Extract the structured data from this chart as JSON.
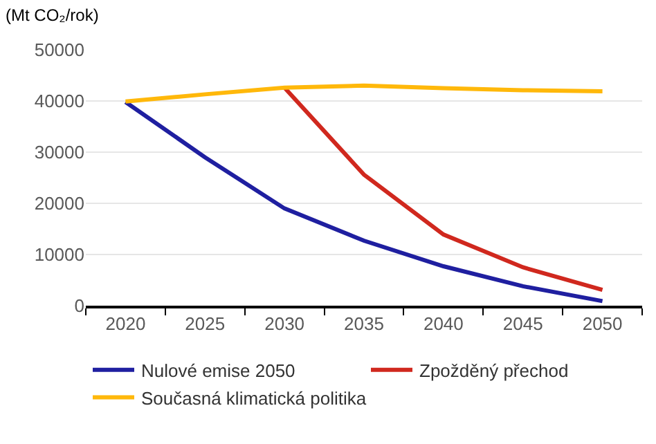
{
  "chart_data": {
    "type": "line",
    "ylabel": "(Mt CO₂/rok)",
    "categories": [
      "2020",
      "2025",
      "2030",
      "2035",
      "2040",
      "2045",
      "2050"
    ],
    "series": [
      {
        "name": "Nulové emise 2050",
        "color": "#1f1fa0",
        "values": [
          39800,
          29000,
          19000,
          12700,
          7700,
          3800,
          900
        ]
      },
      {
        "name": "Zpožděný přechod",
        "color": "#d0281e",
        "values": [
          null,
          null,
          42600,
          25600,
          13900,
          7500,
          3100
        ]
      },
      {
        "name": "Současná klimatická politika",
        "color": "#ffb80a",
        "values": [
          39900,
          41300,
          42600,
          43000,
          42500,
          42100,
          41900
        ]
      }
    ],
    "ylim": [
      0,
      50000
    ],
    "yticks": [
      0,
      10000,
      20000,
      30000,
      40000,
      50000
    ],
    "grid": "y",
    "legend": "bottom",
    "marker": "none",
    "line_style": "solid"
  }
}
